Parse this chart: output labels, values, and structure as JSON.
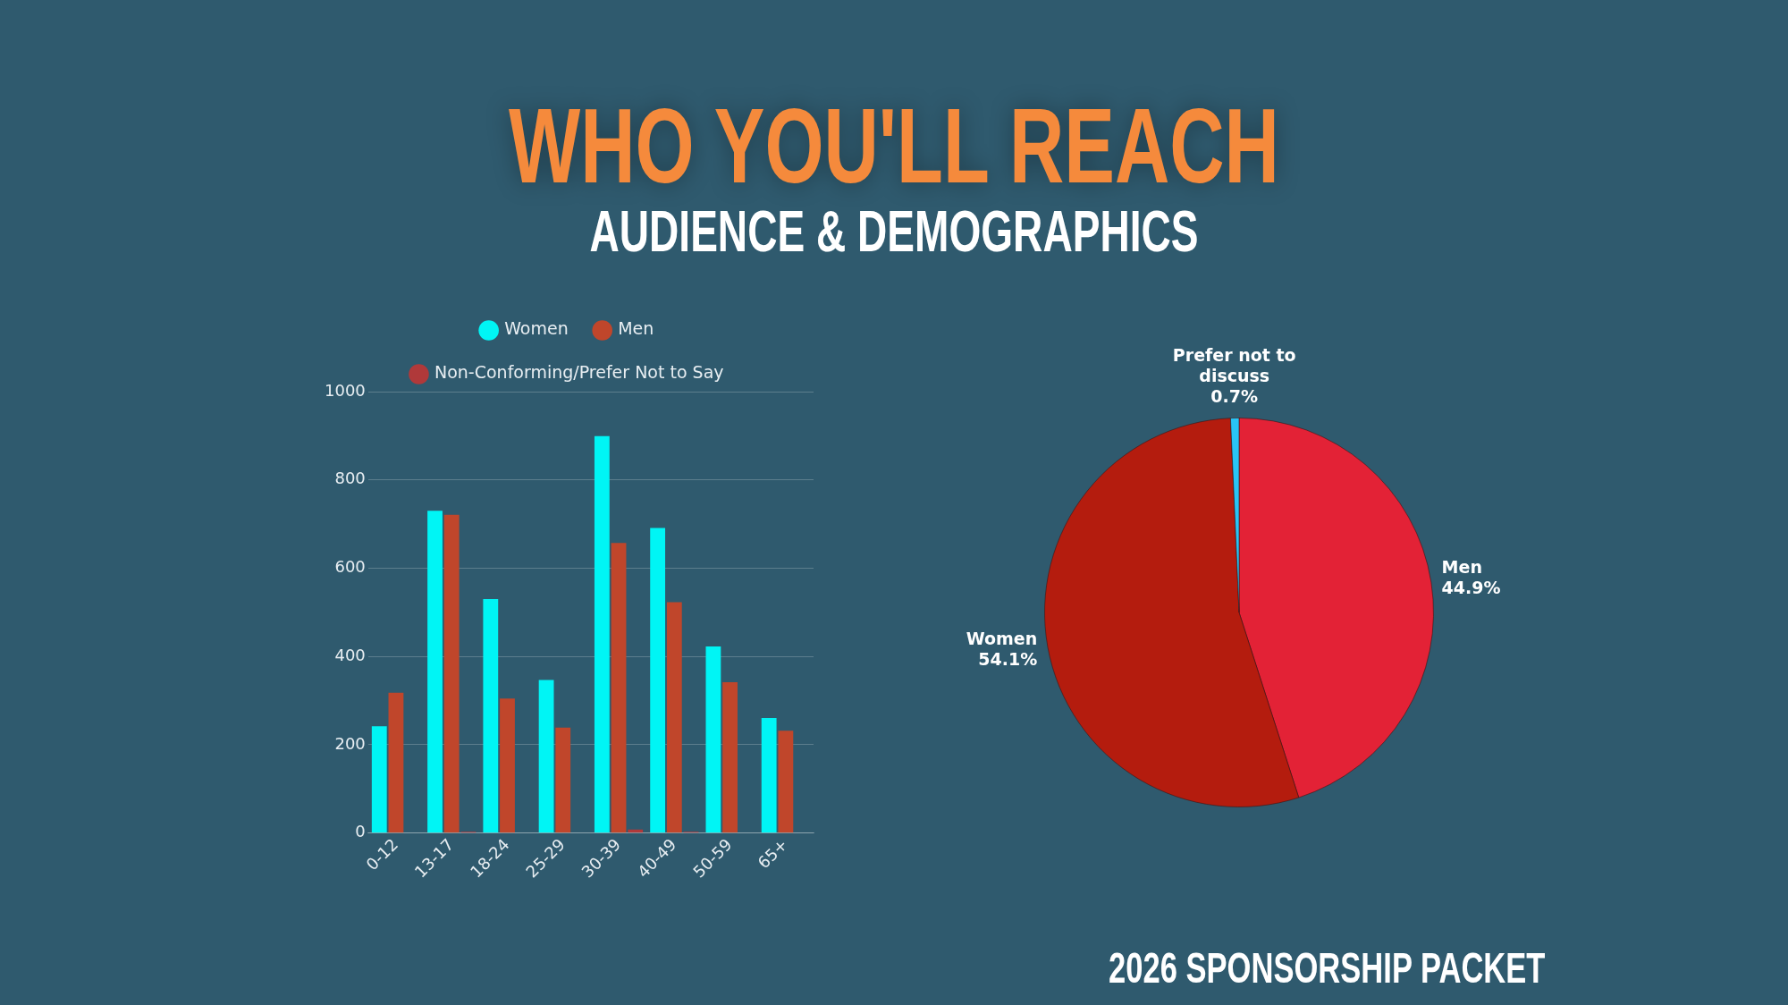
{
  "chart_data": [
    {
      "type": "bar",
      "title": "WHO YOU'LL REACH",
      "subtitle": "AUDIENCE & DEMOGRAPHICS",
      "categories": [
        "0-12",
        "13-17",
        "18-24",
        "25-29",
        "30-39",
        "40-49",
        "50-59",
        "65+"
      ],
      "series": [
        {
          "name": "Women",
          "color": "#00f5f5",
          "values": [
            242,
            730,
            530,
            347,
            899,
            691,
            423,
            261
          ]
        },
        {
          "name": "Men",
          "color": "#c0462b",
          "values": [
            318,
            721,
            305,
            239,
            657,
            523,
            342,
            232
          ]
        },
        {
          "name": "Non-Conforming/Prefer Not to Say",
          "color": "#b0393a",
          "values": [
            0,
            3,
            0,
            0,
            8,
            3,
            0,
            0
          ]
        }
      ],
      "ylim": [
        0,
        1000
      ],
      "yticks": [
        0,
        200,
        400,
        600,
        800,
        1000
      ],
      "grid": "y",
      "legend": "top"
    },
    {
      "type": "pie",
      "categories": [
        "Men",
        "Women",
        "Prefer not to discuss"
      ],
      "values": [
        44.9,
        54.1,
        0.7
      ],
      "colors": [
        "#e32236",
        "#b41c0e",
        "#29c5f6"
      ],
      "value_labels": [
        "44.9%",
        "54.1%",
        "0.7%"
      ],
      "annotations": [
        "2026 SPONSORSHIP PACKET"
      ]
    }
  ]
}
